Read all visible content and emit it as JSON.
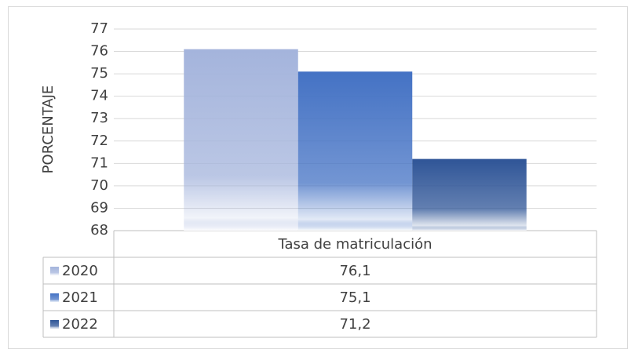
{
  "chart_data": {
    "type": "bar",
    "y_label": "PORCENTAJE",
    "categories": [
      "Tasa de matriculación"
    ],
    "series": [
      {
        "name": "2020",
        "color": "#a4b4dc",
        "values": [
          76.1
        ],
        "value_labels": [
          "76,1"
        ]
      },
      {
        "name": "2021",
        "color": "#4472c4",
        "values": [
          75.1
        ],
        "value_labels": [
          "75,1"
        ]
      },
      {
        "name": "2022",
        "color": "#2f5597",
        "values": [
          71.2
        ],
        "value_labels": [
          "71,2"
        ]
      }
    ],
    "ylim": [
      68,
      77
    ],
    "yticks": [
      68,
      69,
      70,
      71,
      72,
      73,
      74,
      75,
      76,
      77
    ],
    "grid": true,
    "legend": "table"
  }
}
